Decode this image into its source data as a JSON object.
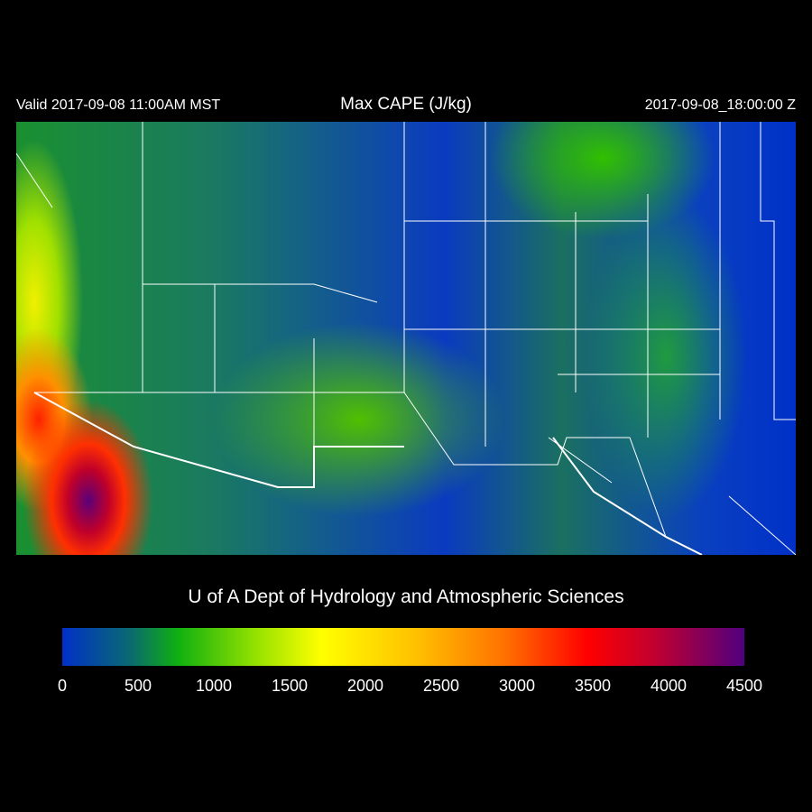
{
  "header": {
    "valid_time": "Valid 2017-09-08 11:00AM MST",
    "title": "Max CAPE (J/kg)",
    "timestamp": "2017-09-08_18:00:00 Z"
  },
  "credit": "U of A Dept of Hydrology and Atmospheric Sciences",
  "colorbar": {
    "units": "J/kg",
    "range": [
      0,
      4500
    ],
    "colors": [
      "#0030c8",
      "#0a6a70",
      "#10b010",
      "#90e000",
      "#ffff00",
      "#ffc000",
      "#ff7000",
      "#ff0000",
      "#c00030",
      "#500080"
    ],
    "ticks": [
      "0",
      "500",
      "1000",
      "1500",
      "2000",
      "2500",
      "3000",
      "3500",
      "4000",
      "4500"
    ]
  },
  "map": {
    "region": "Southwestern United States and northern Mexico",
    "field": "Max CAPE"
  }
}
